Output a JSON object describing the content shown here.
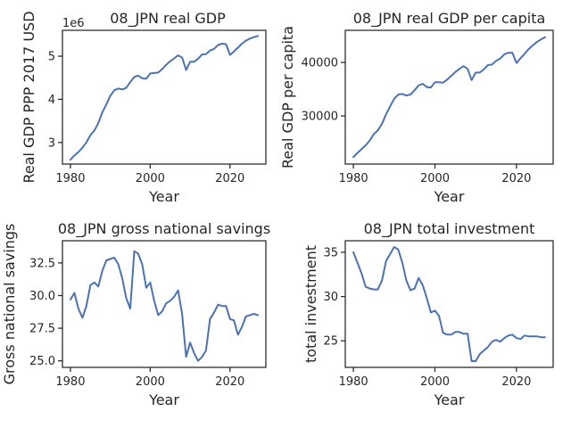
{
  "colors": {
    "series": "#4c72b0",
    "axis": "#262626",
    "background": "#ffffff"
  },
  "chart_data": [
    {
      "type": "line",
      "title": "08_JPN real GDP",
      "xlabel": "Year",
      "ylabel": "Real GDP PPP 2017 USD",
      "offset_label": "1e6",
      "xlim": [
        1978,
        2029
      ],
      "ylim": [
        2.5,
        5.6
      ],
      "xticks": [
        1980,
        2000,
        2020
      ],
      "yticks": [
        3,
        4,
        5
      ],
      "ytick_labels": [
        "3",
        "4",
        "5"
      ],
      "series": [
        {
          "x": [
            1980,
            1981,
            1982,
            1983,
            1984,
            1985,
            1986,
            1987,
            1988,
            1989,
            1990,
            1991,
            1992,
            1993,
            1994,
            1995,
            1996,
            1997,
            1998,
            1999,
            2000,
            2001,
            2002,
            2003,
            2004,
            2005,
            2006,
            2007,
            2008,
            2009,
            2010,
            2011,
            2012,
            2013,
            2014,
            2015,
            2016,
            2017,
            2018,
            2019,
            2020,
            2021,
            2022,
            2023,
            2024,
            2025,
            2026,
            2027
          ],
          "values": [
            2.6,
            2.7,
            2.78,
            2.88,
            3.0,
            3.17,
            3.28,
            3.45,
            3.7,
            3.88,
            4.08,
            4.21,
            4.25,
            4.23,
            4.27,
            4.4,
            4.52,
            4.55,
            4.49,
            4.48,
            4.6,
            4.61,
            4.62,
            4.7,
            4.8,
            4.88,
            4.95,
            5.02,
            4.97,
            4.68,
            4.87,
            4.87,
            4.94,
            5.04,
            5.05,
            5.13,
            5.17,
            5.26,
            5.29,
            5.28,
            5.03,
            5.11,
            5.2,
            5.29,
            5.36,
            5.41,
            5.44,
            5.47
          ]
        }
      ]
    },
    {
      "type": "line",
      "title": "08_JPN real GDP per capita",
      "xlabel": "Year",
      "ylabel": "Real GDP per capita",
      "xlim": [
        1978,
        2029
      ],
      "ylim": [
        21000,
        46000
      ],
      "xticks": [
        1980,
        2000,
        2020
      ],
      "yticks": [
        30000,
        40000
      ],
      "ytick_labels": [
        "30000",
        "40000"
      ],
      "series": [
        {
          "x": [
            1980,
            1981,
            1982,
            1983,
            1984,
            1985,
            1986,
            1987,
            1988,
            1989,
            1990,
            1991,
            1992,
            1993,
            1994,
            1995,
            1996,
            1997,
            1998,
            1999,
            2000,
            2001,
            2002,
            2003,
            2004,
            2005,
            2006,
            2007,
            2008,
            2009,
            2010,
            2011,
            2012,
            2013,
            2014,
            2015,
            2016,
            2017,
            2018,
            2019,
            2020,
            2021,
            2022,
            2023,
            2024,
            2025,
            2026,
            2027
          ],
          "values": [
            22300,
            23100,
            23800,
            24500,
            25400,
            26600,
            27300,
            28500,
            30300,
            31800,
            33200,
            34000,
            34100,
            33800,
            34000,
            34800,
            35700,
            36000,
            35400,
            35300,
            36300,
            36300,
            36200,
            36800,
            37500,
            38200,
            38800,
            39300,
            38800,
            36700,
            38100,
            38100,
            38700,
            39500,
            39600,
            40300,
            40700,
            41500,
            41800,
            41800,
            39900,
            40800,
            41600,
            42500,
            43200,
            43800,
            44300,
            44700
          ]
        }
      ]
    },
    {
      "type": "line",
      "title": "08_JPN gross national savings",
      "xlabel": "Year",
      "ylabel": "Gross national savings",
      "xlim": [
        1978,
        2029
      ],
      "ylim": [
        24.5,
        34.2
      ],
      "xticks": [
        1980,
        2000,
        2020
      ],
      "yticks": [
        25.0,
        27.5,
        30.0,
        32.5
      ],
      "ytick_labels": [
        "25.0",
        "27.5",
        "30.0",
        "32.5"
      ],
      "series": [
        {
          "x": [
            1980,
            1981,
            1982,
            1983,
            1984,
            1985,
            1986,
            1987,
            1988,
            1989,
            1990,
            1991,
            1992,
            1993,
            1994,
            1995,
            1996,
            1997,
            1998,
            1999,
            2000,
            2001,
            2002,
            2003,
            2004,
            2005,
            2006,
            2007,
            2008,
            2009,
            2010,
            2011,
            2012,
            2013,
            2014,
            2015,
            2016,
            2017,
            2018,
            2019,
            2020,
            2021,
            2022,
            2023,
            2024,
            2025,
            2026,
            2027
          ],
          "values": [
            29.7,
            30.2,
            29.0,
            28.3,
            29.2,
            30.8,
            31.0,
            30.7,
            31.9,
            32.7,
            32.8,
            32.9,
            32.4,
            31.3,
            29.8,
            29.0,
            33.4,
            33.2,
            32.4,
            30.6,
            31.0,
            29.6,
            28.5,
            28.8,
            29.4,
            29.6,
            29.9,
            30.4,
            28.6,
            25.3,
            26.4,
            25.6,
            25.0,
            25.3,
            25.8,
            28.2,
            28.7,
            29.3,
            29.2,
            29.2,
            28.2,
            28.1,
            27.0,
            27.6,
            28.4,
            28.5,
            28.6,
            28.5
          ]
        }
      ]
    },
    {
      "type": "line",
      "title": "08_JPN total investment",
      "xlabel": "Year",
      "ylabel": "total investment",
      "xlim": [
        1978,
        2029
      ],
      "ylim": [
        22.0,
        36.3
      ],
      "xticks": [
        1980,
        2000,
        2020
      ],
      "yticks": [
        25,
        30,
        35
      ],
      "ytick_labels": [
        "25",
        "30",
        "35"
      ],
      "series": [
        {
          "x": [
            1980,
            1981,
            1982,
            1983,
            1984,
            1985,
            1986,
            1987,
            1988,
            1989,
            1990,
            1991,
            1992,
            1993,
            1994,
            1995,
            1996,
            1997,
            1998,
            1999,
            2000,
            2001,
            2002,
            2003,
            2004,
            2005,
            2006,
            2007,
            2008,
            2009,
            2010,
            2011,
            2012,
            2013,
            2014,
            2015,
            2016,
            2017,
            2018,
            2019,
            2020,
            2021,
            2022,
            2023,
            2024,
            2025,
            2026,
            2027
          ],
          "values": [
            35.0,
            33.8,
            32.6,
            31.1,
            30.9,
            30.8,
            30.8,
            31.8,
            34.0,
            34.8,
            35.6,
            35.3,
            33.8,
            31.8,
            30.7,
            30.9,
            32.1,
            31.3,
            29.8,
            28.2,
            28.4,
            27.8,
            25.9,
            25.7,
            25.7,
            26.0,
            26.0,
            25.8,
            25.8,
            22.7,
            22.7,
            23.5,
            23.9,
            24.3,
            24.9,
            25.1,
            24.9,
            25.3,
            25.6,
            25.7,
            25.3,
            25.2,
            25.6,
            25.5,
            25.5,
            25.5,
            25.4,
            25.4
          ]
        }
      ]
    }
  ]
}
